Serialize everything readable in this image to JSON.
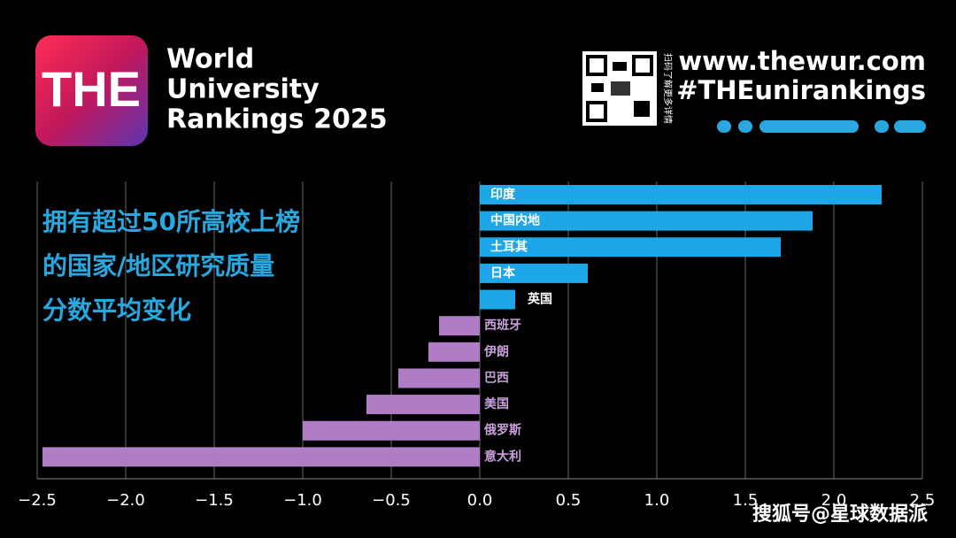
{
  "header": {
    "logo": "THE",
    "brand_lines": [
      "World",
      "University",
      "Rankings 2025"
    ],
    "qr_caption": "扫码了解更多详情",
    "website": "www.thewur.com",
    "hashtag": "#THEunirankings"
  },
  "watermark": "搜狐号@星球数据派",
  "chart_data": {
    "type": "hbar",
    "title_lines": [
      "拥有超过50所高校上榜",
      "的国家/地区研究质量",
      "分数平均变化"
    ],
    "categories": [
      "印度",
      "中国内地",
      "土耳其",
      "日本",
      "英国",
      "西班牙",
      "伊朗",
      "巴西",
      "美国",
      "俄罗斯",
      "意大利"
    ],
    "values": [
      2.27,
      1.88,
      1.7,
      0.61,
      0.2,
      -0.23,
      -0.29,
      -0.46,
      -0.64,
      -1.0,
      -2.47
    ],
    "positive_color": "#1ea7e8",
    "negative_color": "#b07cc6",
    "xlim": [
      -2.5,
      2.5
    ],
    "xticks": [
      {
        "value": -2.5,
        "label": "−2.5"
      },
      {
        "value": -2.0,
        "label": "−2.0"
      },
      {
        "value": -1.5,
        "label": "−1.5"
      },
      {
        "value": -1.0,
        "label": "−1.0"
      },
      {
        "value": -0.5,
        "label": "−0.5"
      },
      {
        "value": 0,
        "label": "0.0"
      },
      0.5,
      {
        "value": 1.0,
        "label": "1.0"
      },
      1.5,
      {
        "value": 2.0,
        "label": "2.0"
      },
      2.5
    ],
    "grid": true
  }
}
